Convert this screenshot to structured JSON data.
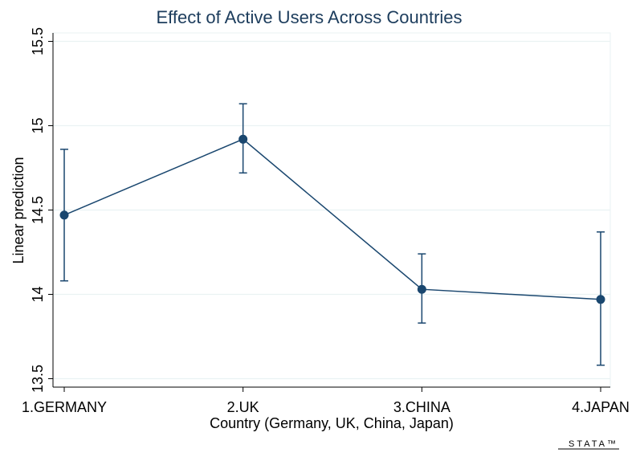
{
  "chart_data": {
    "type": "line",
    "title": "Effect of Active Users Across Countries",
    "xlabel": "Country (Germany, UK, China, Japan)",
    "ylabel": "Linear prediction",
    "categories": [
      "1.GERMANY",
      "2.UK",
      "3.CHINA",
      "4.JAPAN"
    ],
    "series": [
      {
        "values": [
          14.47,
          14.92,
          14.03,
          13.97
        ],
        "ci_low": [
          14.08,
          14.72,
          13.83,
          13.58
        ],
        "ci_high": [
          14.86,
          15.13,
          14.24,
          14.37
        ]
      }
    ],
    "ylim": [
      13.45,
      15.55
    ],
    "yticks": [
      13.5,
      14,
      14.5,
      15,
      15.5
    ],
    "ytick_labels": [
      "13.5",
      "14",
      "14.5",
      "15",
      "15.5"
    ],
    "grid": true,
    "colors": {
      "series": "#1a476f",
      "grid": "#eaf2f3",
      "title": "#1c3c5c"
    }
  },
  "watermark": "STATA™"
}
